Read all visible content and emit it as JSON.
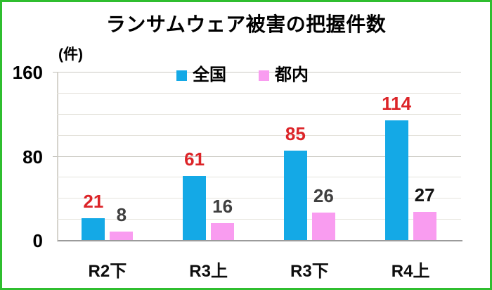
{
  "colors": {
    "frame_border": "#2FBE2F",
    "series_blue": "#14A9E6",
    "series_pink": "#F99CF0",
    "value_red": "#DC2428",
    "value_gray": "#3F3F3F",
    "grid_minor": "#E5E3DC",
    "grid_major": "#CBC9C2",
    "axis_baseline": "#9B9B9B"
  },
  "chart_data": {
    "type": "bar",
    "title": "ランサムウェア被害の把握件数",
    "ylabel": "(件)",
    "xlabel": "",
    "categories": [
      "R2下",
      "R3上",
      "R3下",
      "R4上"
    ],
    "series": [
      {
        "name": "全国",
        "color": "#14A9E6",
        "label_color": "#DC2428",
        "values": [
          21,
          61,
          85,
          114
        ]
      },
      {
        "name": "都内",
        "color": "#F99CF0",
        "label_color": "#3F3F3F",
        "label_colors": [
          "#3F3F3F",
          "#3F3F3F",
          "#3F3F3F",
          "#141414"
        ],
        "values": [
          8,
          16,
          26,
          27
        ]
      }
    ],
    "ylim": [
      0,
      160
    ],
    "y_tick_values": [
      160,
      80,
      0
    ],
    "grid_interval": 20,
    "grid": true,
    "legend_position": "top-center",
    "value_labels": true
  }
}
